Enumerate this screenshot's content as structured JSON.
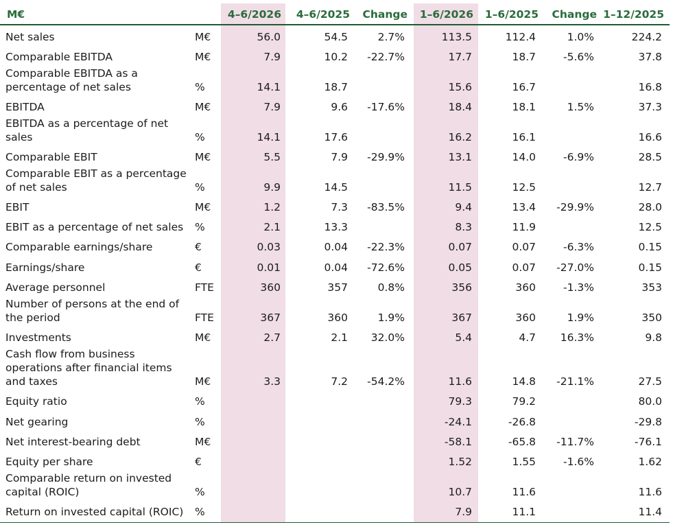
{
  "header": {
    "label": "M€",
    "columns": [
      "4–6/2026",
      "4–6/2025",
      "Change",
      "1–6/2026",
      "1–6/2025",
      "Change",
      "1–12/2025"
    ]
  },
  "rows": [
    {
      "label": "Net sales",
      "unit": "M€",
      "values": [
        "56.0",
        "54.5",
        "2.7%",
        "113.5",
        "112.4",
        "1.0%",
        "224.2"
      ]
    },
    {
      "label": "Comparable EBITDA",
      "unit": "M€",
      "values": [
        "7.9",
        "10.2",
        "-22.7%",
        "17.7",
        "18.7",
        "-5.6%",
        "37.8"
      ]
    },
    {
      "label": "Comparable EBITDA as a percentage of net sales",
      "unit": "%",
      "values": [
        "14.1",
        "18.7",
        "",
        "15.6",
        "16.7",
        "",
        "16.8"
      ]
    },
    {
      "label": "EBITDA",
      "unit": "M€",
      "values": [
        "7.9",
        "9.6",
        "-17.6%",
        "18.4",
        "18.1",
        "1.5%",
        "37.3"
      ]
    },
    {
      "label": "EBITDA as a percentage of net sales",
      "unit": "%",
      "values": [
        "14.1",
        "17.6",
        "",
        "16.2",
        "16.1",
        "",
        "16.6"
      ]
    },
    {
      "label": "Comparable EBIT",
      "unit": "M€",
      "values": [
        "5.5",
        "7.9",
        "-29.9%",
        "13.1",
        "14.0",
        "-6.9%",
        "28.5"
      ]
    },
    {
      "label": "Comparable EBIT as a percentage of net sales",
      "unit": "%",
      "values": [
        "9.9",
        "14.5",
        "",
        "11.5",
        "12.5",
        "",
        "12.7"
      ]
    },
    {
      "label": "EBIT",
      "unit": "M€",
      "values": [
        "1.2",
        "7.3",
        "-83.5%",
        "9.4",
        "13.4",
        "-29.9%",
        "28.0"
      ]
    },
    {
      "label": "EBIT as a percentage of net sales",
      "unit": "%",
      "values": [
        "2.1",
        "13.3",
        "",
        "8.3",
        "11.9",
        "",
        "12.5"
      ]
    },
    {
      "label": "Comparable earnings/share",
      "unit": "€",
      "values": [
        "0.03",
        "0.04",
        "-22.3%",
        "0.07",
        "0.07",
        "-6.3%",
        "0.15"
      ]
    },
    {
      "label": "Earnings/share",
      "unit": "€",
      "values": [
        "0.01",
        "0.04",
        "-72.6%",
        "0.05",
        "0.07",
        "-27.0%",
        "0.15"
      ]
    },
    {
      "label": "Average personnel",
      "unit": "FTE",
      "values": [
        "360",
        "357",
        "0.8%",
        "356",
        "360",
        "-1.3%",
        "353"
      ]
    },
    {
      "label": "Number of persons at the end of the period",
      "unit": "FTE",
      "values": [
        "367",
        "360",
        "1.9%",
        "367",
        "360",
        "1.9%",
        "350"
      ]
    },
    {
      "label": "Investments",
      "unit": "M€",
      "values": [
        "2.7",
        "2.1",
        "32.0%",
        "5.4",
        "4.7",
        "16.3%",
        "9.8"
      ]
    },
    {
      "label": "Cash flow from business operations after financial items and taxes",
      "unit": "M€",
      "values": [
        "3.3",
        "7.2",
        "-54.2%",
        "11.6",
        "14.8",
        "-21.1%",
        "27.5"
      ]
    },
    {
      "label": "Equity ratio",
      "unit": "%",
      "values": [
        "",
        "",
        "",
        "79.3",
        "79.2",
        "",
        "80.0"
      ]
    },
    {
      "label": "Net gearing",
      "unit": "%",
      "values": [
        "",
        "",
        "",
        "-24.1",
        "-26.8",
        "",
        "-29.8"
      ]
    },
    {
      "label": "Net interest-bearing debt",
      "unit": "M€",
      "values": [
        "",
        "",
        "",
        "-58.1",
        "-65.8",
        "-11.7%",
        "-76.1"
      ]
    },
    {
      "label": "Equity per share",
      "unit": "€",
      "values": [
        "",
        "",
        "",
        "1.52",
        "1.55",
        "-1.6%",
        "1.62"
      ]
    },
    {
      "label": "Comparable return on invested capital (ROIC)",
      "unit": "%",
      "values": [
        "",
        "",
        "",
        "10.7",
        "11.6",
        "",
        "11.6"
      ]
    },
    {
      "label": "Return on invested capital (ROIC)",
      "unit": "%",
      "values": [
        "",
        "",
        "",
        "7.9",
        "11.1",
        "",
        "11.4"
      ]
    }
  ],
  "colors": {
    "header_text": "#2b6b3b",
    "rule": "#1f5a33",
    "highlight": "#f0dde6"
  }
}
